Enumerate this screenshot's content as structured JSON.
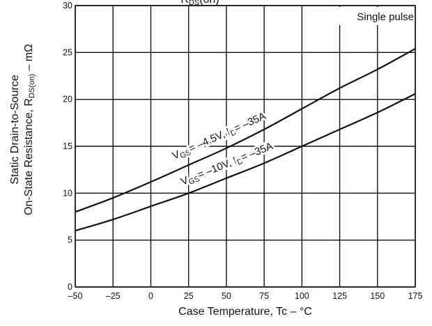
{
  "chart_data": {
    "type": "line",
    "title": "",
    "xlabel": "Case Temperature, Tc  –  °C",
    "ylabel_line1": "Static Drain-to-Source",
    "ylabel_line2_prefix": "On-State Resistance, R",
    "ylabel_line2_sub": "DS(on)",
    "ylabel_line2_suffix": "  –  mΩ",
    "top_cut_text_prefix": "R",
    "top_cut_text_sub": "DS",
    "top_cut_text_suffix": "(on)",
    "xlim": [
      -50,
      175
    ],
    "ylim": [
      0,
      30
    ],
    "x_ticks": [
      -50,
      -25,
      0,
      25,
      50,
      75,
      100,
      125,
      150,
      175
    ],
    "x_tick_labels": [
      "–50",
      "–25",
      "0",
      "25",
      "50",
      "75",
      "100",
      "125",
      "150",
      "175"
    ],
    "y_ticks": [
      0,
      5,
      10,
      15,
      20,
      25,
      30
    ],
    "y_tick_labels": [
      "0",
      "5",
      "10",
      "15",
      "20",
      "25",
      "30"
    ],
    "grid": true,
    "annotation_box": "Single pulse",
    "series": [
      {
        "label_parts": {
          "v": "V",
          "vsub": "GS",
          "mid": "= –4.5V, I",
          "isub": "D",
          "end": "= –35A"
        },
        "x": [
          -50,
          -25,
          0,
          25,
          50,
          75,
          100,
          125,
          150,
          175
        ],
        "y": [
          8.0,
          9.5,
          11.2,
          13.0,
          14.8,
          16.8,
          19.0,
          21.2,
          23.2,
          25.4
        ]
      },
      {
        "label_parts": {
          "v": "V",
          "vsub": "GS",
          "mid": "= –10V, I",
          "isub": "D",
          "end": "= –35A"
        },
        "x": [
          -50,
          -25,
          0,
          25,
          50,
          75,
          100,
          125,
          150,
          175
        ],
        "y": [
          6.0,
          7.2,
          8.6,
          10.0,
          11.6,
          13.2,
          15.0,
          16.8,
          18.6,
          20.6
        ]
      }
    ]
  }
}
